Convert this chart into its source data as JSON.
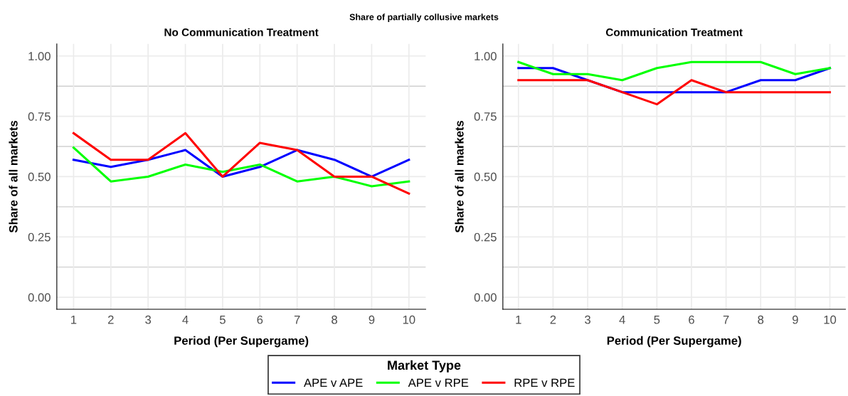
{
  "chart_data": [
    {
      "type": "line",
      "title": "No Communication Treatment",
      "xlabel": "Period (Per Supergame)",
      "ylabel": "Share of all markets",
      "x": [
        1,
        2,
        3,
        4,
        5,
        6,
        7,
        8,
        9,
        10
      ],
      "series": [
        {
          "name": "APE v APE",
          "color": "#0000ff",
          "values": [
            0.57,
            0.54,
            0.57,
            0.61,
            0.5,
            0.54,
            0.61,
            0.57,
            0.5,
            0.57
          ]
        },
        {
          "name": "APE v RPE",
          "color": "#00ff00",
          "values": [
            0.62,
            0.48,
            0.5,
            0.55,
            0.52,
            0.55,
            0.48,
            0.5,
            0.46,
            0.48
          ]
        },
        {
          "name": "RPE v RPE",
          "color": "#ff0000",
          "values": [
            0.68,
            0.57,
            0.57,
            0.68,
            0.5,
            0.64,
            0.61,
            0.5,
            0.5,
            0.43
          ]
        }
      ],
      "xlim": [
        0.55,
        10.45
      ],
      "ylim": [
        -0.05,
        1.05
      ],
      "xticks": [
        1,
        2,
        3,
        4,
        5,
        6,
        7,
        8,
        9,
        10
      ],
      "yticks": [
        {
          "value": 0,
          "label": "0.00"
        },
        {
          "value": 0.25,
          "label": "0.25"
        },
        {
          "value": 0.5,
          "label": "0.50"
        },
        {
          "value": 0.75,
          "label": "0.75"
        },
        {
          "value": 1,
          "label": "1.00"
        }
      ],
      "grid": true,
      "legend": "bottom",
      "legend_title": "Market Type",
      "marker": "none",
      "line_style": "solid",
      "annotations": [
        "Share of partially collusive markets"
      ]
    },
    {
      "type": "line",
      "title": "Communication Treatment",
      "xlabel": "Period (Per Supergame)",
      "ylabel": "Share of all markets",
      "x": [
        1,
        2,
        3,
        4,
        5,
        6,
        7,
        8,
        9,
        10
      ],
      "series": [
        {
          "name": "APE v APE",
          "color": "#0000ff",
          "values": [
            0.95,
            0.95,
            0.9,
            0.85,
            0.85,
            0.85,
            0.85,
            0.9,
            0.9,
            0.95
          ]
        },
        {
          "name": "APE v RPE",
          "color": "#00ff00",
          "values": [
            0.975,
            0.925,
            0.925,
            0.9,
            0.95,
            0.975,
            0.975,
            0.975,
            0.925,
            0.95
          ]
        },
        {
          "name": "RPE v RPE",
          "color": "#ff0000",
          "values": [
            0.9,
            0.9,
            0.9,
            0.85,
            0.8,
            0.9,
            0.85,
            0.85,
            0.85,
            0.85
          ]
        }
      ],
      "xlim": [
        0.55,
        10.45
      ],
      "ylim": [
        -0.05,
        1.05
      ],
      "xticks": [
        1,
        2,
        3,
        4,
        5,
        6,
        7,
        8,
        9,
        10
      ],
      "yticks": [
        {
          "value": 0,
          "label": "0.00"
        },
        {
          "value": 0.25,
          "label": "0.25"
        },
        {
          "value": 0.5,
          "label": "0.50"
        },
        {
          "value": 0.75,
          "label": "0.75"
        },
        {
          "value": 1,
          "label": "1.00"
        }
      ],
      "grid": true,
      "marker": "none",
      "line_style": "solid"
    }
  ]
}
